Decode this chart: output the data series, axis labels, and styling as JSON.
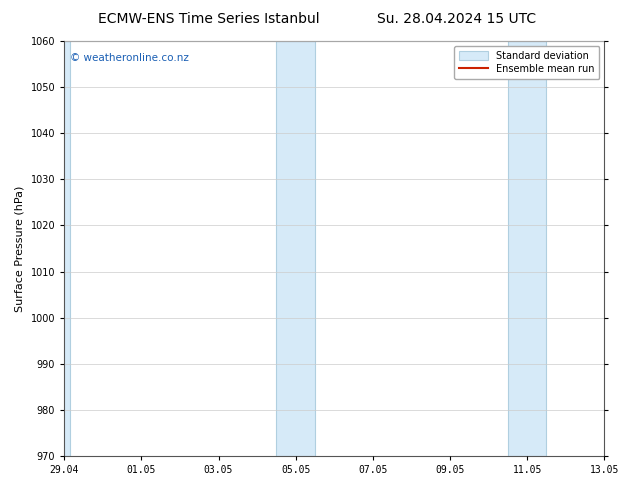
{
  "title_left": "ECMW-ENS Time Series Istanbul",
  "title_right": "Su. 28.04.2024 15 UTC",
  "ylabel": "Surface Pressure (hPa)",
  "ylim": [
    970,
    1060
  ],
  "yticks": [
    970,
    980,
    990,
    1000,
    1010,
    1020,
    1030,
    1040,
    1050,
    1060
  ],
  "xlim_start": 0.0,
  "xlim_end": 14.0,
  "xtick_positions": [
    0,
    2,
    4,
    6,
    8,
    10,
    12,
    14
  ],
  "xtick_labels": [
    "29.04",
    "01.05",
    "03.05",
    "05.05",
    "07.05",
    "09.05",
    "11.05",
    "13.05"
  ],
  "watermark": "© weatheronline.co.nz",
  "watermark_color": "#1a5fb4",
  "legend_std_label": "Standard deviation",
  "legend_mean_label": "Ensemble mean run",
  "std_color": "#d6eaf8",
  "std_edge_color": "#b0cfe0",
  "mean_color": "#cc2200",
  "background_color": "#ffffff",
  "plot_bg_color": "#ffffff",
  "title_fontsize": 10,
  "axis_label_fontsize": 8,
  "tick_fontsize": 7,
  "watermark_fontsize": 7.5,
  "shaded_bands": [
    {
      "x_start": -0.1,
      "x_end": 0.15
    },
    {
      "x_start": 5.5,
      "x_end": 6.5
    },
    {
      "x_start": 11.5,
      "x_end": 12.5
    }
  ],
  "grid_color": "#cccccc",
  "figsize": [
    6.34,
    4.9
  ],
  "dpi": 100
}
